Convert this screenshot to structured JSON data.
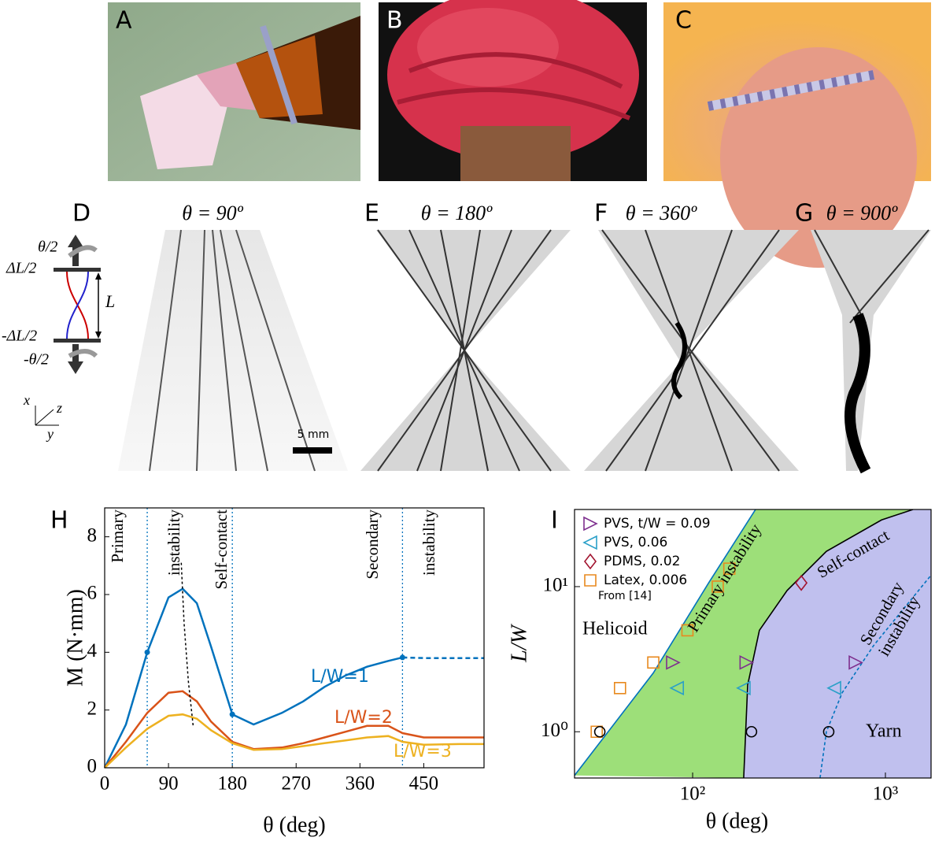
{
  "panels": {
    "A": "A",
    "B": "B",
    "C": "C",
    "D": "D",
    "E": "E",
    "F": "F",
    "G": "G",
    "titles": [
      "θ = 90º",
      "θ = 180º",
      "θ = 360º",
      "θ = 900º"
    ],
    "diagram": {
      "top_rot": "θ/2",
      "top_disp": "ΔL/2",
      "length": "L",
      "bottom_disp": "-ΔL/2",
      "bottom_rot": "-θ/2",
      "axis_x": "x",
      "axis_z": "z",
      "axis_y": "y"
    },
    "scale_bar": "5 mm"
  },
  "chart_data": [
    {
      "type": "line",
      "panel": "H",
      "xlabel": "θ (deg)",
      "ylabel": "M (N·mm)",
      "xlim": [
        0,
        535
      ],
      "ylim": [
        0,
        9
      ],
      "xticks": [
        0,
        90,
        180,
        270,
        360,
        450
      ],
      "yticks": [
        0,
        2,
        4,
        6,
        8
      ],
      "x": [
        0,
        30,
        60,
        90,
        110,
        130,
        150,
        180,
        210,
        250,
        280,
        310,
        340,
        370,
        400,
        420,
        450,
        500,
        535
      ],
      "series": [
        {
          "name": "L/W=1",
          "color": "#0072bd",
          "values": [
            0,
            1.5,
            4,
            5.9,
            6.2,
            5.7,
            4.2,
            1.85,
            1.5,
            1.9,
            2.3,
            2.8,
            3.2,
            3.5,
            3.7,
            3.82,
            3.8,
            3.8,
            3.8
          ],
          "dash_from": 420,
          "markers": [
            2,
            7,
            15
          ]
        },
        {
          "name": "L/W=2",
          "color": "#d95319",
          "values": [
            0,
            0.9,
            1.9,
            2.6,
            2.65,
            2.3,
            1.6,
            0.9,
            0.65,
            0.7,
            0.85,
            1.05,
            1.25,
            1.45,
            1.45,
            1.2,
            1.05,
            1.05,
            1.05
          ]
        },
        {
          "name": "L/W=3",
          "color": "#edb120",
          "values": [
            0,
            0.7,
            1.35,
            1.8,
            1.85,
            1.7,
            1.3,
            0.85,
            0.62,
            0.65,
            0.75,
            0.85,
            0.95,
            1.05,
            1.1,
            0.9,
            0.8,
            0.82,
            0.82
          ]
        }
      ],
      "ridge": {
        "x": [
          108,
          112,
          118,
          125
        ],
        "y": [
          7.1,
          5,
          3,
          1.4
        ]
      },
      "annotations": [
        {
          "x": 60,
          "text": [
            "Primary",
            "instability"
          ]
        },
        {
          "x": 180,
          "text": [
            "Self-contact"
          ]
        },
        {
          "x": 420,
          "text": [
            "Secondary",
            "instability"
          ]
        }
      ]
    },
    {
      "type": "scatter",
      "panel": "I",
      "xlabel": "θ (deg)",
      "ylabel": "L/W",
      "xscale": "log",
      "yscale": "log",
      "xlim": [
        24.4,
        1725
      ],
      "ylim": [
        0.48,
        34
      ],
      "xticks": [
        {
          "value": 100,
          "label": "10²"
        },
        {
          "value": 1000,
          "label": "10³"
        }
      ],
      "yticks": [
        {
          "value": 1,
          "label": "10⁰"
        },
        {
          "value": 10,
          "label": "10¹"
        }
      ],
      "boundaries": {
        "primary": {
          "color": "#0072bd",
          "x": [
            24.4,
            62.5,
            121,
            212
          ],
          "y": [
            0.5,
            2.54,
            10.6,
            34
          ]
        },
        "self_contact": {
          "color": "#000000",
          "x": [
            184,
            193,
            222,
            309,
            494,
            955,
            1390
          ],
          "y": [
            0.48,
            2.1,
            5.0,
            9.4,
            17.5,
            28.8,
            34
          ]
        },
        "secondary": {
          "color": "#0072bd",
          "x": [
            458,
            494,
            597,
            869,
            1726
          ],
          "y": [
            0.48,
            1.0,
            1.86,
            3.93,
            12
          ]
        }
      },
      "regions": {
        "helicoid": "#ffffff",
        "helix": "#9ddf79",
        "yarn": "#c0c0ee"
      },
      "series": [
        {
          "name": "PVS, t/W = 0.09",
          "marker": "right",
          "color": "#7e2f8e",
          "x": [
            79,
            190,
            700
          ],
          "values": [
            3,
            3,
            3
          ]
        },
        {
          "name": "PVS, 0.06",
          "marker": "left",
          "color": "#2aa0c8",
          "x": [
            83,
            184,
            543
          ],
          "values": [
            2,
            2,
            2
          ]
        },
        {
          "name": "PDMS, 0.02",
          "marker": "diamond",
          "color": "#a2142f",
          "x": [
            366
          ],
          "values": [
            10.6
          ]
        },
        {
          "name": "Latex, 0.006",
          "marker": "square",
          "color": "#e8891e",
          "x": [
            31.8,
            42,
            62.5,
            94,
            135,
            155
          ],
          "values": [
            1,
            2,
            3,
            5,
            10,
            13.3
          ]
        },
        {
          "name": "From [14]",
          "marker": "circle",
          "color": "#000000",
          "x": [
            33,
            202,
            508
          ],
          "values": [
            1,
            1,
            1
          ]
        }
      ],
      "annotations": [
        "Helicoid",
        "Primary instability",
        "Self-contact",
        [
          "Secondary",
          "instability"
        ],
        "Yarn"
      ]
    }
  ]
}
